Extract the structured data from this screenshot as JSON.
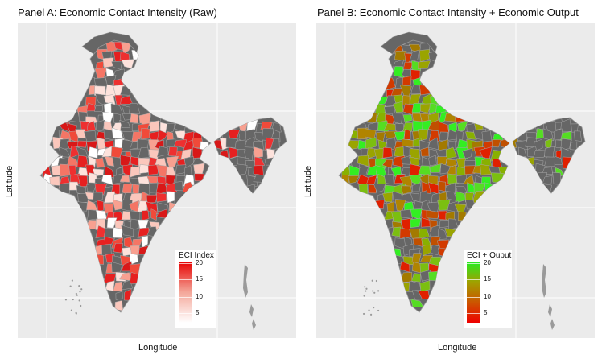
{
  "panels": {
    "a": {
      "title": "Panel A: Economic Contact Intensity (Raw)",
      "xlabel": "Longitude",
      "ylabel": "Latitude",
      "legend": {
        "title": "ECI Index",
        "ticks": [
          "20",
          "15",
          "10",
          "5"
        ],
        "colors": {
          "high": "#e60000",
          "low": "#ffffff"
        }
      }
    },
    "b": {
      "title": "Panel B: Economic Contact Intensity + Economic Output",
      "xlabel": "Longitude",
      "ylabel": "Latitude",
      "legend": {
        "title": "ECI + Ouput",
        "ticks": [
          "20",
          "15",
          "10",
          "5"
        ],
        "colors": {
          "high": "#22ee22",
          "mid": "#a0a000",
          "low": "#ee0000"
        }
      }
    }
  },
  "colors": {
    "panel_background": "#ebebeb",
    "grid": "#ffffff",
    "missing_district": "#666666",
    "islands": "#9a9a9a"
  }
}
